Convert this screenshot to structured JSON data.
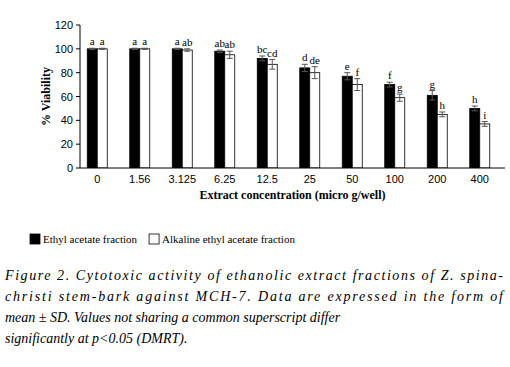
{
  "chart_data": {
    "type": "bar",
    "x_label": "Extract concentration (micro g/well)",
    "y_label": "% Viability",
    "categories": [
      "0",
      "1.56",
      "3.125",
      "6.25",
      "12.5",
      "25",
      "50",
      "100",
      "200",
      "400"
    ],
    "series": [
      {
        "name": "Ethyl acetate fraction",
        "color": "#000000",
        "values": [
          100,
          100,
          100,
          98,
          92,
          84,
          77,
          70,
          61,
          50
        ],
        "errors": [
          0.5,
          0.5,
          0.5,
          1,
          2,
          3,
          3,
          2,
          4,
          2
        ],
        "letters": [
          "a",
          "a",
          "a",
          "ab",
          "bc",
          "d",
          "e",
          "f",
          "g",
          "h"
        ]
      },
      {
        "name": "Alkaline ethyl acetate fraction",
        "color": "#ffffff",
        "values": [
          100,
          100,
          99,
          95,
          87,
          80,
          70,
          59,
          45,
          37
        ],
        "errors": [
          0.5,
          0.5,
          1,
          3,
          4,
          5,
          5,
          3,
          2,
          2
        ],
        "letters": [
          "a",
          "a",
          "ab",
          "ab",
          "cd",
          "de",
          "f",
          "g",
          "h",
          "i"
        ]
      }
    ],
    "ylim": [
      0,
      120
    ],
    "yticks": [
      0,
      20,
      40,
      60,
      80,
      100,
      120
    ],
    "grid": false,
    "legend": "bottom",
    "caption": [
      "Figure 2. Cytotoxic activity of ethanolic extract fractions of Z. spina-",
      "christi stem-bark against MCH-7. Data are expressed in the form of",
      "mean ± SD. Values not sharing a common superscript differ",
      "significantly at p<0.05 (DMRT)."
    ]
  }
}
